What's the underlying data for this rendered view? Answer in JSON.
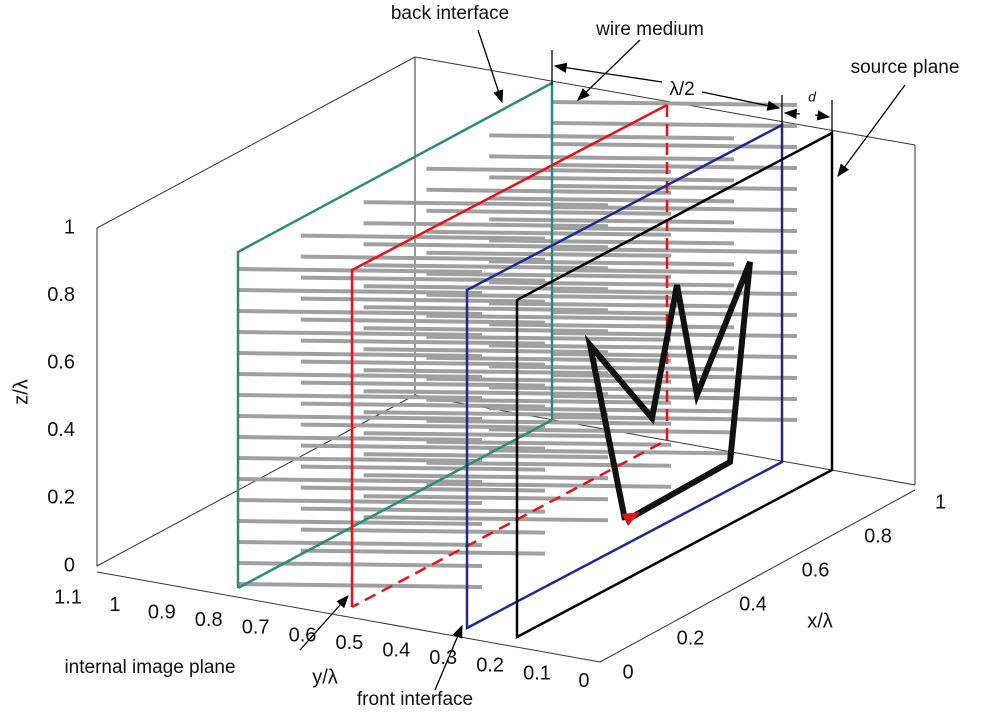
{
  "annotations": {
    "back_interface": "back interface",
    "wire_medium": "wire medium",
    "half_wavelength": "λ/2",
    "gap": "d",
    "source_plane": "source plane",
    "internal_image_plane": "internal image plane",
    "front_interface": "front interface"
  },
  "axes": {
    "z_title": "z/λ",
    "y_title": "y/λ",
    "x_title": "x/λ",
    "z_ticks": [
      "1",
      "0.8",
      "0.6",
      "0.4",
      "0.2",
      "0"
    ],
    "y_ticks": [
      "1.1",
      "1",
      "0.9",
      "0.8",
      "0.7",
      "0.6",
      "0.5",
      "0.4",
      "0.3",
      "0.2",
      "0.1",
      "0"
    ],
    "x_ticks": [
      "0",
      "0.2",
      "0.4",
      "0.6",
      "0.8",
      "1"
    ]
  }
}
